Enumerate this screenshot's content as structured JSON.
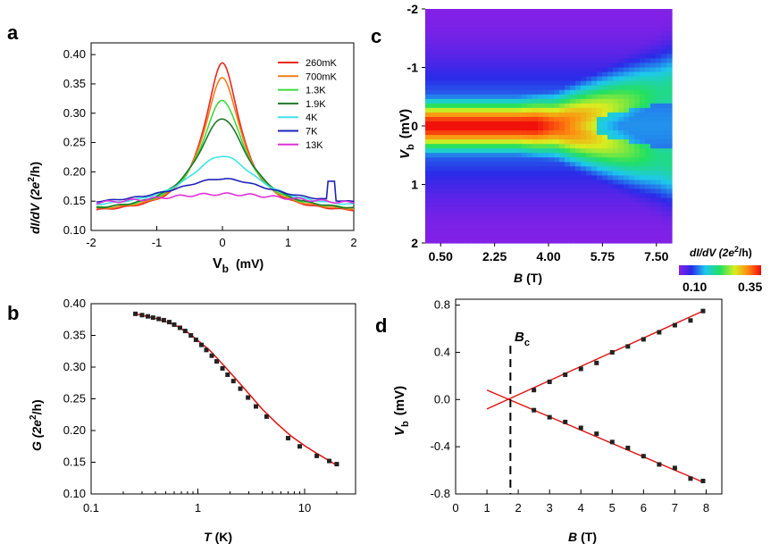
{
  "colors": {
    "fit": "#e01010",
    "data_marker": "#222222"
  },
  "chart_data": [
    {
      "panel": "a",
      "type": "line",
      "xlabel_main": "V",
      "xlabel_sub": "b",
      "xlabel_unit": "(mV)",
      "ylabel": "dI/dV  (2e",
      "ylabel_sup": "2",
      "ylabel_tail": "/h)",
      "xlim": [
        -2,
        2
      ],
      "ylim": [
        0.1,
        0.42
      ],
      "xticks": [
        -2,
        -1,
        0,
        1,
        2
      ],
      "xtick_labels": [
        "-2",
        "-1",
        "0",
        "1",
        "2"
      ],
      "yticks": [
        0.1,
        0.15,
        0.2,
        0.25,
        0.3,
        0.35,
        0.4
      ],
      "ytick_labels": [
        "0.10",
        "0.15",
        "0.20",
        "0.25",
        "0.30",
        "0.35",
        "0.40"
      ],
      "legend": "top-right",
      "series": [
        {
          "name": "260mK",
          "color": "#e8281e",
          "peak": 0.385,
          "base": 0.128,
          "width": 0.55
        },
        {
          "name": "700mK",
          "color": "#f07f1a",
          "peak": 0.36,
          "base": 0.13,
          "width": 0.58
        },
        {
          "name": "1.3K",
          "color": "#3cdc3c",
          "peak": 0.322,
          "base": 0.132,
          "width": 0.65
        },
        {
          "name": "1.9K",
          "color": "#1f7a28",
          "peak": 0.291,
          "base": 0.13,
          "width": 0.78
        },
        {
          "name": "4K",
          "color": "#3fe4e8",
          "peak": 0.227,
          "base": 0.136,
          "width": 1.05
        },
        {
          "name": "7K",
          "color": "#1f22b8",
          "peak": 0.188,
          "base": 0.14,
          "width": 1.6
        },
        {
          "name": "13K",
          "color": "#e030d8",
          "peak": 0.162,
          "base": 0.138,
          "width": 2.6
        }
      ]
    },
    {
      "panel": "b",
      "type": "scatter",
      "xscale": "log",
      "xlabel": "T",
      "xlabel_unit": "(K)",
      "ylabel": "G (2e",
      "ylabel_sup": "2",
      "ylabel_tail": "/h)",
      "xlim": [
        0.1,
        30
      ],
      "ylim": [
        0.1,
        0.4
      ],
      "xticks": [
        0.1,
        1,
        10
      ],
      "xtick_labels": [
        "0.1",
        "1",
        "10"
      ],
      "yticks": [
        0.1,
        0.15,
        0.2,
        0.25,
        0.3,
        0.35,
        0.4
      ],
      "ytick_labels": [
        "0.10",
        "0.15",
        "0.20",
        "0.25",
        "0.30",
        "0.35",
        "0.40"
      ],
      "x": [
        0.26,
        0.3,
        0.34,
        0.38,
        0.43,
        0.48,
        0.54,
        0.6,
        0.68,
        0.76,
        0.86,
        0.96,
        1.08,
        1.2,
        1.35,
        1.5,
        1.7,
        1.9,
        2.15,
        2.5,
        2.95,
        3.5,
        4.4,
        7.0,
        9.0,
        13.0,
        17.0,
        20.0
      ],
      "y": [
        0.384,
        0.382,
        0.38,
        0.378,
        0.376,
        0.374,
        0.371,
        0.367,
        0.362,
        0.357,
        0.35,
        0.343,
        0.335,
        0.327,
        0.318,
        0.309,
        0.298,
        0.288,
        0.278,
        0.266,
        0.252,
        0.238,
        0.222,
        0.188,
        0.175,
        0.16,
        0.152,
        0.147
      ],
      "fit_x": [
        0.26,
        0.4,
        0.6,
        0.8,
        1.0,
        1.3,
        1.7,
        2.2,
        3.0,
        4.0,
        5.5,
        7.5,
        10,
        13,
        16,
        20
      ],
      "fit_y": [
        0.384,
        0.377,
        0.367,
        0.355,
        0.342,
        0.326,
        0.305,
        0.284,
        0.258,
        0.234,
        0.211,
        0.191,
        0.176,
        0.164,
        0.155,
        0.145
      ]
    },
    {
      "panel": "c",
      "type": "heatmap",
      "xlabel": "B",
      "xlabel_unit": "(T)",
      "ylabel_main": "V",
      "ylabel_sub": "b",
      "ylabel_unit": "(mV)",
      "xlim": [
        0,
        8
      ],
      "ylim": [
        -2,
        2
      ],
      "xticks": [
        0.5,
        2.25,
        4.0,
        5.75,
        7.5
      ],
      "xtick_labels": [
        "0.50",
        "2.25",
        "4.00",
        "5.75",
        "7.50"
      ],
      "yticks": [
        -2,
        -1,
        0,
        1,
        2
      ],
      "ytick_labels": [
        "-2",
        "-1",
        "0",
        "1",
        "2"
      ],
      "colorbar_title": "dI/dV (2e",
      "colorbar_sup": "2",
      "colorbar_tail": "/h)",
      "colorbar_min": 0.1,
      "colorbar_max": 0.35,
      "colorbar_min_label": "0.10",
      "colorbar_max_label": "0.35"
    },
    {
      "panel": "d",
      "type": "scatter",
      "xlabel": "B",
      "xlabel_unit": "(T)",
      "ylabel_main": "V",
      "ylabel_sub": "b",
      "ylabel_unit": "(mV)",
      "xlim": [
        0,
        8.5
      ],
      "ylim": [
        -0.8,
        0.85
      ],
      "xticks": [
        0,
        1,
        2,
        3,
        4,
        5,
        6,
        7,
        8
      ],
      "xtick_labels": [
        "0",
        "1",
        "2",
        "3",
        "4",
        "5",
        "6",
        "7",
        "8"
      ],
      "yticks": [
        -0.8,
        -0.4,
        0.0,
        0.4,
        0.8
      ],
      "ytick_labels": [
        "-0.8",
        "-0.4",
        "0.0",
        "0.4",
        "0.8"
      ],
      "annotation": "B",
      "annotation_sub": "c",
      "bc": 1.75,
      "upper_x": [
        2.5,
        3.0,
        3.5,
        4.0,
        4.5,
        5.0,
        5.5,
        6.0,
        6.5,
        7.0,
        7.5,
        7.9
      ],
      "upper_y": [
        0.08,
        0.15,
        0.21,
        0.26,
        0.31,
        0.4,
        0.45,
        0.51,
        0.57,
        0.63,
        0.67,
        0.75
      ],
      "lower_x": [
        2.5,
        3.0,
        3.5,
        4.0,
        4.5,
        5.0,
        5.5,
        6.0,
        6.5,
        7.0,
        7.5,
        7.9
      ],
      "lower_y": [
        -0.09,
        -0.15,
        -0.19,
        -0.24,
        -0.29,
        -0.36,
        -0.41,
        -0.48,
        -0.55,
        -0.58,
        -0.67,
        -0.69
      ],
      "upper_fit": [
        [
          1.0,
          -0.08
        ],
        [
          7.9,
          0.75
        ]
      ],
      "lower_fit": [
        [
          1.0,
          0.08
        ],
        [
          7.9,
          -0.7
        ]
      ]
    }
  ]
}
